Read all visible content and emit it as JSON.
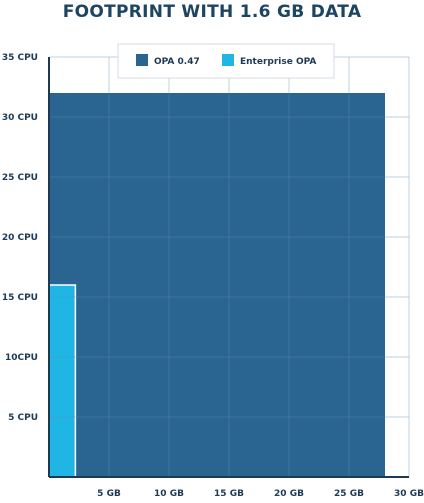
{
  "chart_data": {
    "type": "area",
    "title": "FOOTPRINT WITH 1.6 GB DATA",
    "xlabel": "",
    "ylabel": "",
    "x_ticks": [
      "5 GB",
      "10 GB",
      "15 GB",
      "20 GB",
      "25 GB",
      "30 GB"
    ],
    "x_tick_values": [
      5,
      10,
      15,
      20,
      25,
      30
    ],
    "y_ticks": [
      "5 CPU",
      "10CPU",
      "15 CPU",
      "20 CPU",
      "25 CPU",
      "30 CPU",
      "35 CPU"
    ],
    "y_tick_values": [
      5,
      10,
      15,
      20,
      25,
      30,
      35
    ],
    "xlim": [
      0,
      30
    ],
    "ylim": [
      0,
      35
    ],
    "grid": true,
    "legend_position": "top-center",
    "series": [
      {
        "name": "OPA 0.47",
        "memory_gb": 28,
        "cpu": 32,
        "color": "#2a6491"
      },
      {
        "name": "Enterprise OPA",
        "memory_gb": 2.2,
        "cpu": 16,
        "color": "#1fb6e3"
      }
    ]
  },
  "colors": {
    "title": "#1d4460",
    "axis": "#1d3a55",
    "grid": "#5f8db5"
  }
}
